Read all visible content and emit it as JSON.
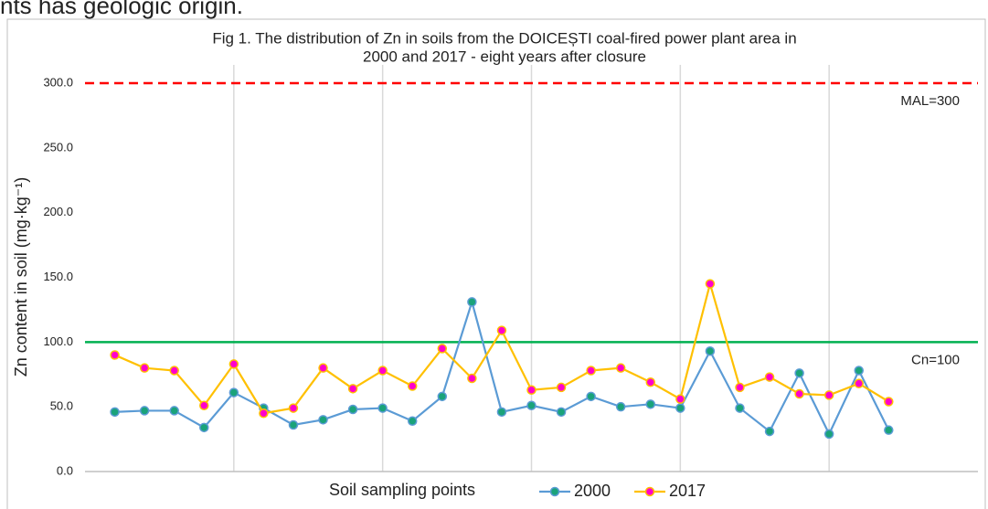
{
  "page_text": "nts has geologic origin.",
  "chart_data": {
    "type": "line",
    "title": [
      "Fig 1. The distribution of Zn in soils from the DOICEȘTI  coal-fired power plant area in",
      "2000 and 2017 - eight years after closure"
    ],
    "x_label": "Soil sampling points",
    "y_label": "Zn content in soil (mg·kg⁻¹)",
    "categories": [
      null,
      null,
      null,
      null,
      null,
      null,
      null,
      null,
      null,
      null,
      null,
      null,
      null,
      null,
      null,
      null,
      null,
      null,
      null,
      null,
      null,
      null,
      null,
      null,
      null,
      null,
      null
    ],
    "series": [
      {
        "name": "2000",
        "color": "#5b9bd5",
        "marker_color": "#1aa37a",
        "values": [
          46,
          47,
          47,
          34,
          61,
          49,
          36,
          40,
          48,
          49,
          39,
          58,
          131,
          46,
          51,
          46,
          58,
          50,
          52,
          49,
          93,
          49,
          31,
          76,
          29,
          78,
          32
        ]
      },
      {
        "name": "2017",
        "color": "#ffc000",
        "marker_color": "#ff00cc",
        "values": [
          90,
          80,
          78,
          51,
          83,
          45,
          49,
          80,
          64,
          78,
          66,
          95,
          72,
          109,
          63,
          65,
          78,
          80,
          69,
          56,
          145,
          65,
          73,
          60,
          59,
          68,
          54
        ]
      }
    ],
    "reference_lines": [
      {
        "value": 300,
        "label": "MAL=300",
        "color": "#ff0000",
        "dashed": true
      },
      {
        "value": 100,
        "label": "Cn=100",
        "color": "#00b050",
        "dashed": false
      }
    ],
    "ylim": [
      0,
      300
    ],
    "yticks": [
      {
        "value": 0,
        "label": "0.0"
      },
      {
        "value": 50,
        "label": "50.0"
      },
      {
        "value": 100,
        "label": "100.0"
      },
      {
        "value": 150,
        "label": "150.0"
      },
      {
        "value": 200,
        "label": "200.0"
      },
      {
        "value": 250,
        "label": "250.0"
      },
      {
        "value": 300,
        "label": "300.0"
      }
    ],
    "grid": true,
    "legend": "bottom"
  }
}
